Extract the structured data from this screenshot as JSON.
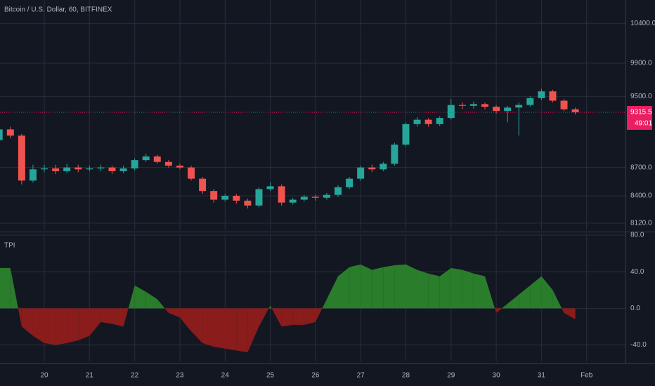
{
  "chart_data": [
    {
      "type": "candlestick",
      "title": "Bitcoin / U.S. Dollar, 60, BITFINEX",
      "log_scale": true,
      "x": [
        19.0,
        19.25,
        19.5,
        19.75,
        20.0,
        20.25,
        20.5,
        20.75,
        21.0,
        21.25,
        21.5,
        21.75,
        22.0,
        22.25,
        22.5,
        22.75,
        23.0,
        23.25,
        23.5,
        23.75,
        24.0,
        24.25,
        24.5,
        24.75,
        25.0,
        25.25,
        25.5,
        25.75,
        26.0,
        26.25,
        26.5,
        26.75,
        27.0,
        27.25,
        27.5,
        27.75,
        28.0,
        28.25,
        28.5,
        28.75,
        29.0,
        29.25,
        29.5,
        29.75,
        30.0,
        30.25,
        30.5,
        30.75,
        31.0,
        31.25,
        31.5,
        31.75
      ],
      "open": [
        9000,
        9120,
        9050,
        8560,
        8680,
        8690,
        8660,
        8700,
        8680,
        8690,
        8700,
        8660,
        8690,
        8780,
        8820,
        8760,
        8720,
        8700,
        8580,
        8450,
        8360,
        8400,
        8350,
        8300,
        8470,
        8500,
        8330,
        8360,
        8390,
        8380,
        8410,
        8490,
        8580,
        8700,
        8680,
        8740,
        8950,
        9180,
        9230,
        9180,
        9250,
        9400,
        9390,
        9410,
        9380,
        9330,
        9370,
        9400,
        9480,
        9560,
        9450,
        9350
      ],
      "high": [
        9160,
        9150,
        9070,
        8730,
        8730,
        8730,
        8740,
        8730,
        8720,
        8730,
        8720,
        8720,
        8800,
        8850,
        8840,
        8780,
        8740,
        8720,
        8600,
        8470,
        8420,
        8420,
        8370,
        8490,
        8540,
        8520,
        8380,
        8410,
        8410,
        8430,
        8510,
        8600,
        8720,
        8730,
        8760,
        8970,
        9200,
        9260,
        9250,
        9270,
        9470,
        9430,
        9440,
        9430,
        9400,
        9390,
        9430,
        9500,
        9590,
        9580,
        9470,
        9370
      ],
      "low": [
        8960,
        9020,
        8520,
        8540,
        8650,
        8630,
        8640,
        8650,
        8660,
        8660,
        8630,
        8640,
        8670,
        8760,
        8740,
        8700,
        8680,
        8560,
        8420,
        8330,
        8340,
        8320,
        8270,
        8280,
        8450,
        8300,
        8310,
        8340,
        8350,
        8360,
        8390,
        8470,
        8560,
        8650,
        8660,
        8720,
        8930,
        9150,
        9150,
        9160,
        9230,
        9350,
        9360,
        9350,
        9300,
        9200,
        9050,
        9380,
        9460,
        9430,
        9330,
        9290
      ],
      "close": [
        9120,
        9050,
        8560,
        8680,
        8690,
        8660,
        8700,
        8680,
        8690,
        8700,
        8660,
        8690,
        8780,
        8820,
        8760,
        8720,
        8700,
        8580,
        8450,
        8360,
        8400,
        8350,
        8300,
        8470,
        8500,
        8330,
        8360,
        8390,
        8380,
        8410,
        8490,
        8580,
        8700,
        8680,
        8740,
        8950,
        9180,
        9230,
        9180,
        9250,
        9400,
        9390,
        9410,
        9380,
        9330,
        9370,
        9400,
        9480,
        9560,
        9450,
        9350,
        9315
      ],
      "up_color": "#26a69a",
      "down_color": "#ef5350",
      "xlim": [
        19.02,
        32.86
      ],
      "ylim": [
        8050,
        10705
      ],
      "yticks": [
        {
          "value": 8120,
          "label": "8120.0"
        },
        {
          "value": 8400,
          "label": "8400.0"
        },
        {
          "value": 8700,
          "label": "8700.0"
        },
        {
          "value": 9500,
          "label": "9500.0"
        },
        {
          "value": 9900,
          "label": "9900.0"
        },
        {
          "value": 10400,
          "label": "10400.0"
        }
      ],
      "last_price": 9315.5,
      "countdown": "49:01",
      "last_price_color": "#e91e63"
    },
    {
      "type": "area",
      "title": "TPI",
      "x": [
        19.0,
        19.25,
        19.5,
        19.75,
        20.0,
        20.25,
        20.5,
        20.75,
        21.0,
        21.25,
        21.5,
        21.75,
        22.0,
        22.25,
        22.5,
        22.75,
        23.0,
        23.25,
        23.5,
        23.75,
        24.0,
        24.25,
        24.5,
        24.75,
        25.0,
        25.25,
        25.5,
        25.75,
        26.0,
        26.25,
        26.5,
        26.75,
        27.0,
        27.25,
        27.5,
        27.75,
        28.0,
        28.25,
        28.5,
        28.75,
        29.0,
        29.25,
        29.5,
        29.75,
        30.0,
        30.25,
        30.5,
        30.75,
        31.0,
        31.25,
        31.5,
        31.75
      ],
      "values": [
        44,
        44,
        -20,
        -30,
        -38,
        -40,
        -38,
        -35,
        -30,
        -15,
        -17,
        -20,
        25,
        18,
        10,
        -5,
        -10,
        -25,
        -38,
        -42,
        -44,
        -46,
        -48,
        -20,
        3,
        -20,
        -18,
        -18,
        -15,
        10,
        35,
        45,
        48,
        42,
        45,
        47,
        48,
        42,
        38,
        35,
        44,
        42,
        38,
        35,
        -5,
        5,
        15,
        25,
        35,
        20,
        -5,
        -12
      ],
      "positive_color": "#2a7d2a",
      "negative_color": "#8a1c1c",
      "xlim": [
        19.02,
        32.86
      ],
      "ylim": [
        -58,
        81.5
      ],
      "yticks": [
        {
          "value": -40,
          "label": "-40.0"
        },
        {
          "value": 0,
          "label": "0.0"
        },
        {
          "value": 40,
          "label": "40.0"
        },
        {
          "value": 80,
          "label": "80.0"
        }
      ],
      "xticks": [
        20,
        21,
        22,
        23,
        24,
        25,
        26,
        27,
        28,
        29,
        30,
        31,
        {
          "value": 32,
          "label": "Feb"
        }
      ],
      "grid": true
    }
  ]
}
